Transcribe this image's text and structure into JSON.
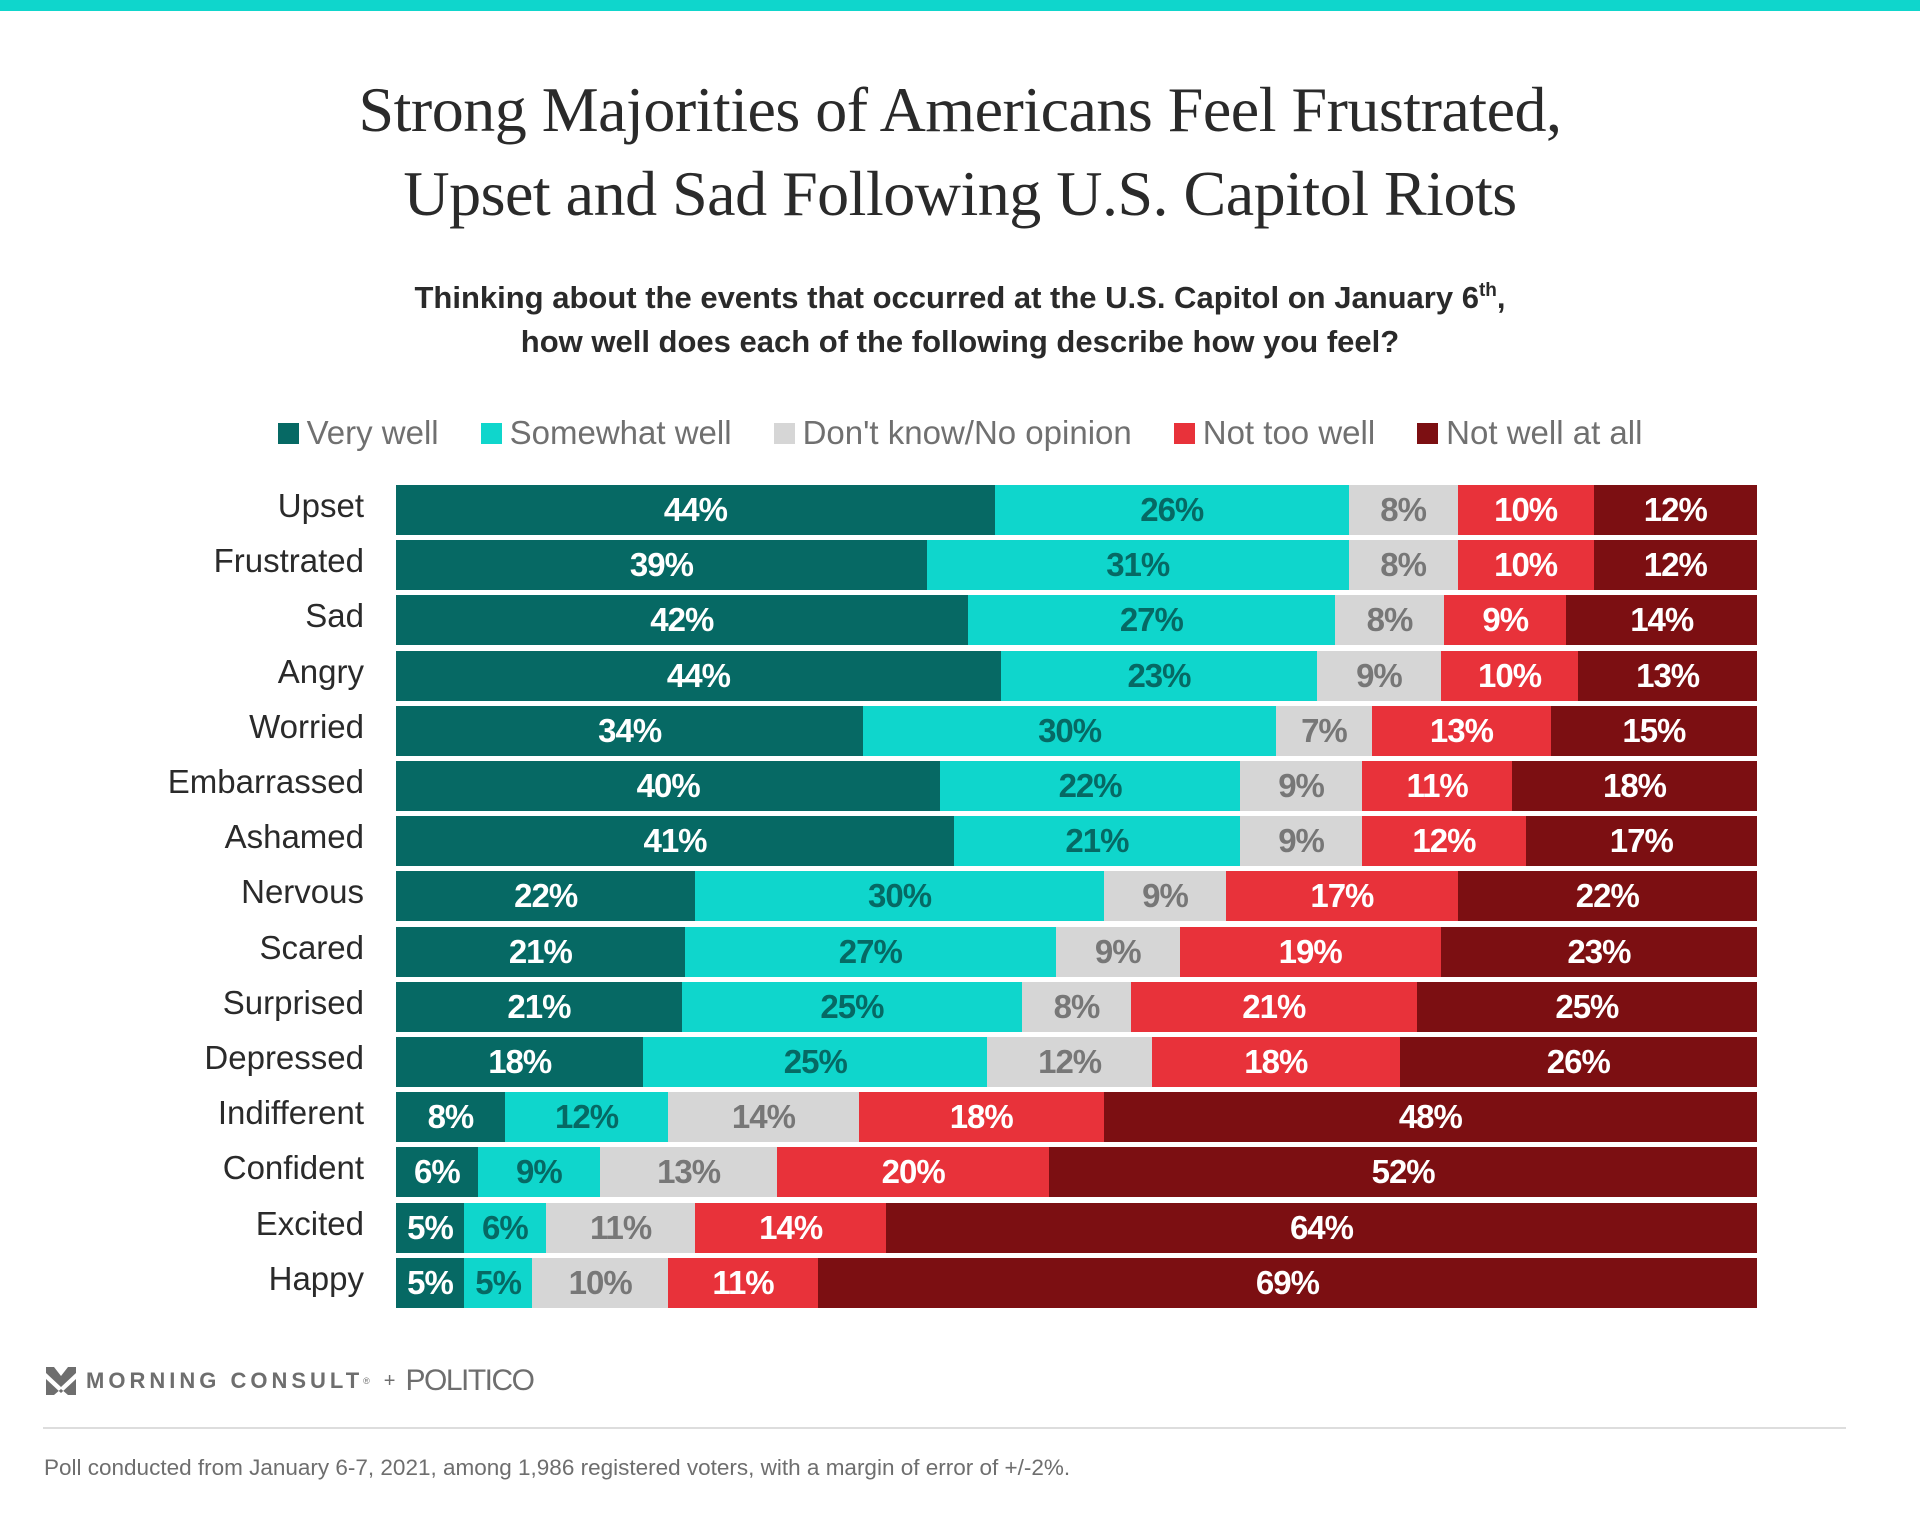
{
  "header": {
    "title_line1": "Strong Majorities of Americans Feel Frustrated,",
    "title_line2": "Upset and Sad Following U.S. Capitol Riots",
    "subtitle_line1_pre": "Thinking about the events that occurred at the U.S. Capitol on January 6",
    "subtitle_line1_sup": "th",
    "subtitle_line1_post": ",",
    "subtitle_line2": "how well does each of the following describe how you feel?"
  },
  "legend": [
    {
      "label": "Very well",
      "color": "#066964"
    },
    {
      "label": "Somewhat well",
      "color": "#0fd6cc"
    },
    {
      "label": "Don't know/No opinion",
      "color": "#d6d6d6"
    },
    {
      "label": "Not too well",
      "color": "#e8323a"
    },
    {
      "label": "Not well at all",
      "color": "#7c0f12"
    }
  ],
  "chart_data": {
    "type": "bar",
    "orientation": "horizontal",
    "stacked": true,
    "normalized": true,
    "title": "Strong Majorities of Americans Feel Frustrated, Upset and Sad Following U.S. Capitol Riots",
    "subtitle": "Thinking about the events that occurred at the U.S. Capitol on January 6th, how well does each of the following describe how you feel?",
    "xlabel": "",
    "ylabel": "",
    "xlim": [
      0,
      100
    ],
    "legend_position": "top",
    "grid": false,
    "categories": [
      "Upset",
      "Frustrated",
      "Sad",
      "Angry",
      "Worried",
      "Embarrassed",
      "Ashamed",
      "Nervous",
      "Scared",
      "Surprised",
      "Depressed",
      "Indifferent",
      "Confident",
      "Excited",
      "Happy"
    ],
    "series": [
      {
        "name": "Very well",
        "color": "#066964",
        "label_color": "#ffffff",
        "values": [
          44,
          39,
          42,
          44,
          34,
          40,
          41,
          22,
          21,
          21,
          18,
          8,
          6,
          5,
          5
        ]
      },
      {
        "name": "Somewhat well",
        "color": "#0fd6cc",
        "label_color": "#066964",
        "values": [
          26,
          31,
          27,
          23,
          30,
          22,
          21,
          30,
          27,
          25,
          25,
          12,
          9,
          6,
          5
        ]
      },
      {
        "name": "Don't know/No opinion",
        "color": "#d6d6d6",
        "label_color": "#777777",
        "values": [
          8,
          8,
          8,
          9,
          7,
          9,
          9,
          9,
          9,
          8,
          12,
          14,
          13,
          11,
          10
        ]
      },
      {
        "name": "Not too well",
        "color": "#e8323a",
        "label_color": "#ffffff",
        "values": [
          10,
          10,
          9,
          10,
          13,
          11,
          12,
          17,
          19,
          21,
          18,
          18,
          20,
          14,
          11
        ]
      },
      {
        "name": "Not well at all",
        "color": "#7c0f12",
        "label_color": "#ffffff",
        "values": [
          12,
          12,
          14,
          13,
          15,
          18,
          17,
          22,
          23,
          25,
          26,
          48,
          52,
          64,
          69
        ]
      }
    ],
    "value_suffix": "%"
  },
  "footer": {
    "brand1": "MORNING CONSULT",
    "brand1_mark": "®",
    "plus": "+",
    "brand2": "POLITICO",
    "note": "Poll conducted from January 6-7, 2021, among 1,986 registered voters, with a margin of error of +/-2%."
  }
}
